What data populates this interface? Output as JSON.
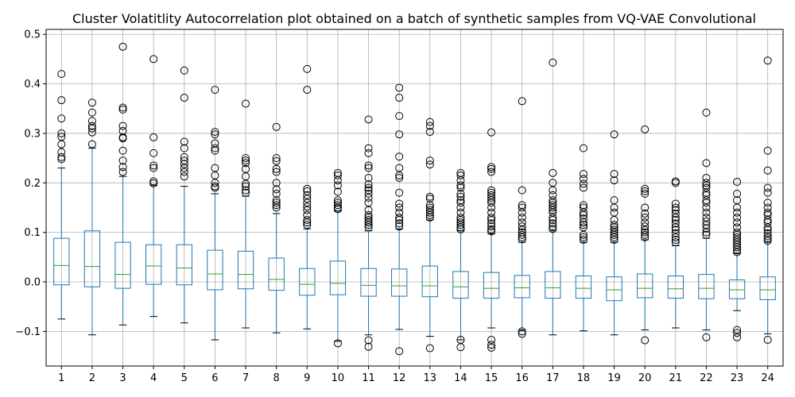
{
  "chart_data": {
    "type": "box",
    "title": "Cluster Volatitlity Autocorrelation plot obtained on a batch of synthetic samples from VQ-VAE Convolutional",
    "xlabel": "",
    "ylabel": "",
    "ylim": [
      -0.17,
      0.51
    ],
    "y_ticks": [
      -0.1,
      0.0,
      0.1,
      0.2,
      0.3,
      0.4,
      0.5
    ],
    "y_tick_labels": [
      "−0.1",
      "0.0",
      "0.1",
      "0.2",
      "0.3",
      "0.4",
      "0.5"
    ],
    "grid": true,
    "colors": {
      "box": "#1f77b4",
      "median": "#2ca02c",
      "whisker": "#1f77b4",
      "cap": "#000000",
      "flier": "#000000",
      "grid": "#b0b0b0"
    },
    "categories": [
      "1",
      "2",
      "3",
      "4",
      "5",
      "6",
      "7",
      "8",
      "9",
      "10",
      "11",
      "12",
      "13",
      "14",
      "15",
      "16",
      "17",
      "18",
      "19",
      "20",
      "21",
      "22",
      "23",
      "24"
    ],
    "boxes": [
      {
        "label": "1",
        "whislo": -0.075,
        "q1": -0.006,
        "med": 0.033,
        "q3": 0.088,
        "whishi": 0.23,
        "fliers": [
          0.42,
          0.367,
          0.33,
          0.3,
          0.293,
          0.278,
          0.262,
          0.252,
          0.248
        ]
      },
      {
        "label": "2",
        "whislo": -0.107,
        "q1": -0.01,
        "med": 0.031,
        "q3": 0.103,
        "whishi": 0.27,
        "fliers": [
          0.362,
          0.342,
          0.325,
          0.315,
          0.31,
          0.302,
          0.278
        ]
      },
      {
        "label": "3",
        "whislo": -0.087,
        "q1": -0.013,
        "med": 0.015,
        "q3": 0.08,
        "whishi": 0.213,
        "fliers": [
          0.475,
          0.352,
          0.348,
          0.315,
          0.305,
          0.292,
          0.29,
          0.265,
          0.245,
          0.232,
          0.222
        ]
      },
      {
        "label": "4",
        "whislo": -0.07,
        "q1": -0.005,
        "med": 0.032,
        "q3": 0.075,
        "whishi": 0.195,
        "fliers": [
          0.45,
          0.292,
          0.26,
          0.235,
          0.23,
          0.203,
          0.199
        ]
      },
      {
        "label": "5",
        "whislo": -0.083,
        "q1": -0.006,
        "med": 0.028,
        "q3": 0.075,
        "whishi": 0.193,
        "fliers": [
          0.427,
          0.372,
          0.283,
          0.27,
          0.252,
          0.245,
          0.238,
          0.23,
          0.222,
          0.213
        ]
      },
      {
        "label": "6",
        "whislo": -0.117,
        "q1": -0.016,
        "med": 0.016,
        "q3": 0.064,
        "whishi": 0.178,
        "fliers": [
          0.388,
          0.303,
          0.298,
          0.28,
          0.27,
          0.265,
          0.23,
          0.215,
          0.2,
          0.193,
          0.19
        ]
      },
      {
        "label": "7",
        "whislo": -0.093,
        "q1": -0.014,
        "med": 0.015,
        "q3": 0.062,
        "whishi": 0.173,
        "fliers": [
          0.36,
          0.25,
          0.245,
          0.24,
          0.228,
          0.213,
          0.198,
          0.193,
          0.185,
          0.18
        ]
      },
      {
        "label": "8",
        "whislo": -0.103,
        "q1": -0.017,
        "med": 0.005,
        "q3": 0.048,
        "whishi": 0.138,
        "fliers": [
          0.313,
          0.25,
          0.244,
          0.228,
          0.222,
          0.2,
          0.187,
          0.178,
          0.165,
          0.16,
          0.155,
          0.15
        ]
      },
      {
        "label": "9",
        "whislo": -0.095,
        "q1": -0.027,
        "med": -0.005,
        "q3": 0.027,
        "whishi": 0.107,
        "fliers": [
          0.43,
          0.388,
          0.188,
          0.183,
          0.175,
          0.168,
          0.16,
          0.152,
          0.145,
          0.135,
          0.125,
          0.12,
          0.115
        ]
      },
      {
        "label": "10",
        "whislo": -0.12,
        "q1": -0.026,
        "med": -0.003,
        "q3": 0.042,
        "whishi": 0.143,
        "fliers": [
          0.22,
          0.215,
          0.205,
          0.195,
          0.182,
          0.165,
          0.16,
          0.155,
          0.15,
          0.147,
          -0.124
        ]
      },
      {
        "label": "11",
        "whislo": -0.107,
        "q1": -0.029,
        "med": -0.007,
        "q3": 0.027,
        "whishi": 0.103,
        "fliers": [
          0.328,
          0.27,
          0.26,
          0.235,
          0.23,
          0.21,
          0.197,
          0.19,
          0.185,
          0.178,
          0.17,
          0.16,
          0.145,
          0.135,
          0.13,
          0.125,
          0.12,
          0.115,
          0.11,
          -0.118,
          -0.131
        ]
      },
      {
        "label": "12",
        "whislo": -0.096,
        "q1": -0.029,
        "med": -0.008,
        "q3": 0.026,
        "whishi": 0.107,
        "fliers": [
          0.392,
          0.372,
          0.335,
          0.298,
          0.253,
          0.23,
          0.215,
          0.21,
          0.18,
          0.158,
          0.15,
          0.14,
          0.13,
          0.125,
          0.118,
          0.112,
          -0.14
        ]
      },
      {
        "label": "13",
        "whislo": -0.11,
        "q1": -0.03,
        "med": -0.008,
        "q3": 0.032,
        "whishi": 0.125,
        "fliers": [
          0.323,
          0.315,
          0.303,
          0.245,
          0.237,
          0.172,
          0.168,
          0.155,
          0.15,
          0.145,
          0.14,
          0.135,
          0.13,
          -0.134
        ]
      },
      {
        "label": "14",
        "whislo": -0.117,
        "q1": -0.033,
        "med": -0.01,
        "q3": 0.021,
        "whishi": 0.103,
        "fliers": [
          0.22,
          0.215,
          0.205,
          0.195,
          0.19,
          0.178,
          0.172,
          0.165,
          0.16,
          0.15,
          0.14,
          0.13,
          0.125,
          0.12,
          0.115,
          0.11,
          0.106,
          -0.117,
          -0.132
        ]
      },
      {
        "label": "15",
        "whislo": -0.093,
        "q1": -0.033,
        "med": -0.013,
        "q3": 0.019,
        "whishi": 0.097,
        "fliers": [
          0.302,
          0.232,
          0.228,
          0.222,
          0.185,
          0.18,
          0.175,
          0.17,
          0.165,
          0.16,
          0.15,
          0.14,
          0.13,
          0.125,
          0.118,
          0.112,
          0.106,
          0.102,
          -0.117,
          -0.127,
          -0.133
        ]
      },
      {
        "label": "16",
        "whislo": -0.097,
        "q1": -0.032,
        "med": -0.012,
        "q3": 0.013,
        "whishi": 0.08,
        "fliers": [
          0.365,
          0.185,
          0.155,
          0.15,
          0.14,
          0.13,
          0.12,
          0.112,
          0.105,
          0.1,
          0.095,
          0.09,
          0.086,
          -0.1,
          -0.105
        ]
      },
      {
        "label": "17",
        "whislo": -0.107,
        "q1": -0.033,
        "med": -0.012,
        "q3": 0.021,
        "whishi": 0.103,
        "fliers": [
          0.443,
          0.22,
          0.2,
          0.185,
          0.175,
          0.165,
          0.16,
          0.155,
          0.15,
          0.145,
          0.14,
          0.13,
          0.125,
          0.118,
          0.112,
          0.107
        ]
      },
      {
        "label": "18",
        "whislo": -0.099,
        "q1": -0.033,
        "med": -0.013,
        "q3": 0.012,
        "whishi": 0.08,
        "fliers": [
          0.27,
          0.218,
          0.208,
          0.198,
          0.19,
          0.155,
          0.15,
          0.14,
          0.135,
          0.128,
          0.12,
          0.115,
          0.11,
          0.095,
          0.09,
          0.085
        ]
      },
      {
        "label": "19",
        "whislo": -0.107,
        "q1": -0.038,
        "med": -0.016,
        "q3": 0.01,
        "whishi": 0.08,
        "fliers": [
          0.298,
          0.218,
          0.205,
          0.165,
          0.15,
          0.14,
          0.125,
          0.115,
          0.11,
          0.105,
          0.1,
          0.095,
          0.09,
          0.085
        ]
      },
      {
        "label": "20",
        "whislo": -0.097,
        "q1": -0.032,
        "med": -0.013,
        "q3": 0.016,
        "whishi": 0.085,
        "fliers": [
          0.308,
          0.188,
          0.183,
          0.178,
          0.15,
          0.138,
          0.13,
          0.12,
          0.112,
          0.105,
          0.1,
          0.095,
          0.09,
          -0.118
        ]
      },
      {
        "label": "21",
        "whislo": -0.093,
        "q1": -0.033,
        "med": -0.014,
        "q3": 0.012,
        "whishi": 0.073,
        "fliers": [
          0.203,
          0.2,
          0.158,
          0.15,
          0.145,
          0.138,
          0.13,
          0.125,
          0.118,
          0.11,
          0.105,
          0.098,
          0.09,
          0.085,
          0.08
        ]
      },
      {
        "label": "22",
        "whislo": -0.097,
        "q1": -0.034,
        "med": -0.013,
        "q3": 0.015,
        "whishi": 0.088,
        "fliers": [
          0.342,
          0.24,
          0.21,
          0.2,
          0.195,
          0.19,
          0.18,
          0.175,
          0.165,
          0.16,
          0.15,
          0.14,
          0.13,
          0.122,
          0.115,
          0.108,
          0.1,
          0.095,
          -0.112
        ]
      },
      {
        "label": "23",
        "whislo": -0.058,
        "q1": -0.034,
        "med": -0.016,
        "q3": 0.004,
        "whishi": 0.057,
        "fliers": [
          0.202,
          0.178,
          0.165,
          0.15,
          0.14,
          0.13,
          0.12,
          0.11,
          0.1,
          0.095,
          0.09,
          0.085,
          0.08,
          0.075,
          0.07,
          0.065,
          0.06,
          -0.097,
          -0.103,
          -0.112
        ]
      },
      {
        "label": "24",
        "whislo": -0.105,
        "q1": -0.036,
        "med": -0.016,
        "q3": 0.01,
        "whishi": 0.08,
        "fliers": [
          0.447,
          0.265,
          0.225,
          0.19,
          0.18,
          0.16,
          0.15,
          0.14,
          0.135,
          0.125,
          0.12,
          0.11,
          0.105,
          0.098,
          0.092,
          0.088,
          0.083,
          -0.117
        ]
      }
    ]
  }
}
